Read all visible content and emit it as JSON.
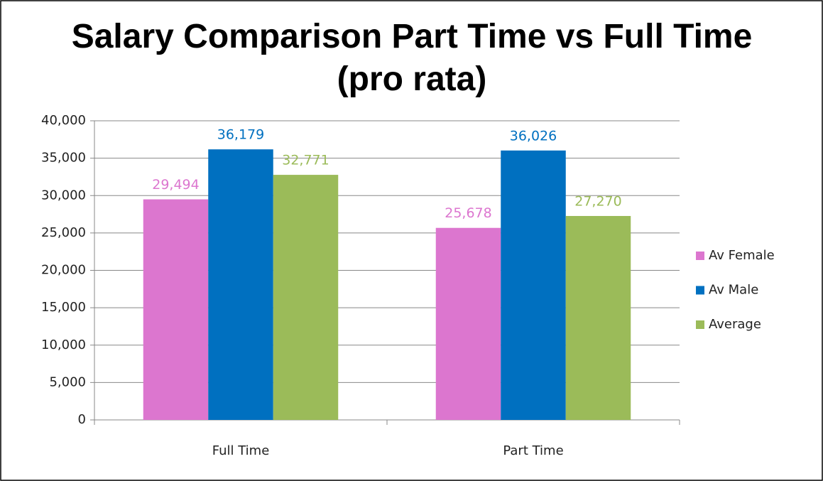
{
  "chart_data": {
    "type": "bar",
    "title": "Salary Comparison Part Time vs Full Time (pro rata)",
    "categories": [
      "Full Time",
      "Part Time"
    ],
    "series": [
      {
        "name": "Av Female",
        "color": "#dc76cf",
        "values": [
          29494,
          25678
        ],
        "value_labels": [
          "29,494",
          "25,678"
        ]
      },
      {
        "name": "Av Male",
        "color": "#0070c0",
        "values": [
          36179,
          36026
        ],
        "value_labels": [
          "36,179",
          "36,026"
        ]
      },
      {
        "name": "Average",
        "color": "#9bbb59",
        "values": [
          32771,
          27270
        ],
        "value_labels": [
          "32,771",
          "27,270"
        ]
      }
    ],
    "ylim": [
      0,
      40000
    ],
    "yticks": [
      0,
      {
        "value": 5000,
        "label": "5,000"
      },
      {
        "value": 10000,
        "label": "10,000"
      },
      {
        "value": 15000,
        "label": "15,000"
      },
      {
        "value": 20000,
        "label": "20,000"
      },
      {
        "value": 25000,
        "label": "25,000"
      },
      {
        "value": 30000,
        "label": "30,000"
      },
      {
        "value": 35000,
        "label": "35,000"
      },
      {
        "value": 40000,
        "label": "40,000"
      }
    ],
    "grid": true,
    "legend": "right"
  }
}
